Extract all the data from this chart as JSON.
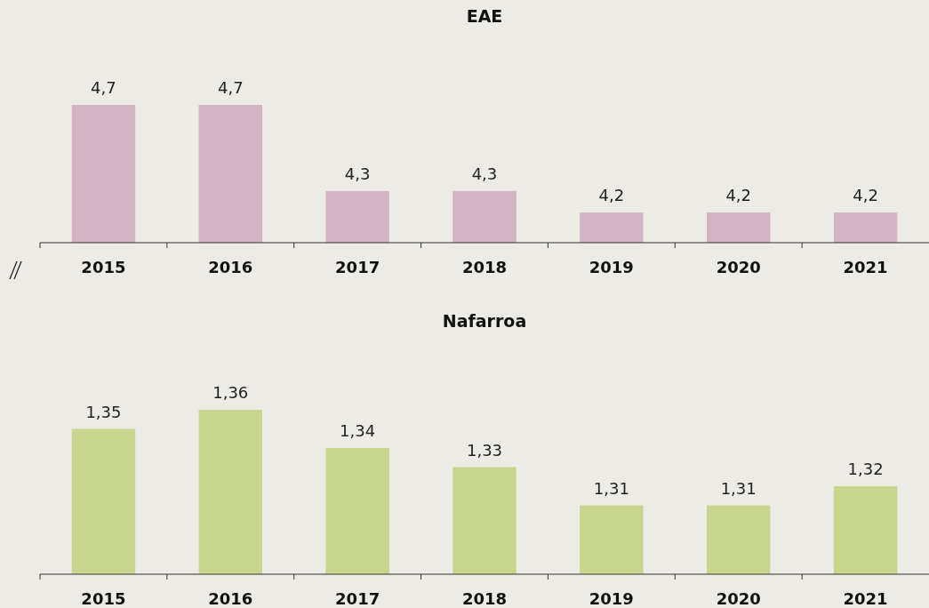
{
  "chart_data": [
    {
      "type": "bar",
      "title": "EAE",
      "categories": [
        "2015",
        "2016",
        "2017",
        "2018",
        "2019",
        "2020",
        "2021"
      ],
      "values": [
        4.7,
        4.7,
        4.3,
        4.3,
        4.2,
        4.2,
        4.2
      ],
      "value_labels": [
        "4,7",
        "4,7",
        "4,3",
        "4,3",
        "4,2",
        "4,2",
        "4,2"
      ],
      "color": "#d4b3c4",
      "ylim": [
        4.06,
        4.7
      ]
    },
    {
      "type": "bar",
      "title": "Nafarroa",
      "categories": [
        "2015",
        "2016",
        "2017",
        "2018",
        "2019",
        "2020",
        "2021"
      ],
      "values": [
        1.35,
        1.36,
        1.34,
        1.33,
        1.31,
        1.31,
        1.32
      ],
      "value_labels": [
        "1,35",
        "1,36",
        "1,34",
        "1,33",
        "1,31",
        "1,31",
        "1,32"
      ],
      "color": "#c7d68c",
      "ylim": [
        1.274,
        1.36
      ]
    }
  ]
}
